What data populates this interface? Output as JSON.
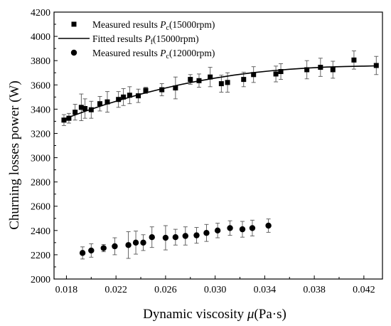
{
  "chart_data": {
    "type": "scatter",
    "title": "",
    "xlabel": "Dynamic viscosity μ(Pa·s)",
    "ylabel": "Churning losses power (W)",
    "xlim": [
      0.017,
      0.0435
    ],
    "ylim": [
      2000,
      4200
    ],
    "xticks": [
      0.018,
      0.022,
      0.026,
      0.03,
      0.034,
      0.038,
      0.042
    ],
    "xtick_labels": [
      "0.018",
      "0.022",
      "0.026",
      "0.030",
      "0.034",
      "0.038",
      "0.042"
    ],
    "yticks": [
      2000,
      2200,
      2400,
      2600,
      2800,
      3000,
      3200,
      3400,
      3600,
      3800,
      4000,
      4200
    ],
    "ytick_labels": [
      "2000",
      "2200",
      "2400",
      "2600",
      "2800",
      "3000",
      "3200",
      "3400",
      "3600",
      "3800",
      "4000",
      "4200"
    ],
    "grid": false,
    "legend_position": "top-left",
    "series": [
      {
        "name": "Measured results P_c(15000rpm)",
        "legend_main": "Measured results ",
        "legend_symbol": "P",
        "legend_sub": "c",
        "legend_tail": "(15000rpm)",
        "marker": "square",
        "color": "#000000",
        "x": [
          0.0178,
          0.0182,
          0.0187,
          0.0192,
          0.0195,
          0.02,
          0.0207,
          0.0213,
          0.0222,
          0.0226,
          0.0231,
          0.0238,
          0.0244,
          0.0257,
          0.0268,
          0.028,
          0.0287,
          0.0296,
          0.0305,
          0.031,
          0.0323,
          0.0331,
          0.0349,
          0.0353,
          0.0374,
          0.0385,
          0.0395,
          0.0412,
          0.043
        ],
        "y": [
          3310,
          3325,
          3375,
          3415,
          3405,
          3395,
          3445,
          3460,
          3480,
          3500,
          3515,
          3510,
          3555,
          3560,
          3575,
          3645,
          3635,
          3665,
          3610,
          3620,
          3645,
          3685,
          3690,
          3710,
          3725,
          3745,
          3725,
          3805,
          3760
        ],
        "err": [
          45,
          40,
          65,
          110,
          80,
          70,
          60,
          85,
          65,
          70,
          70,
          55,
          25,
          50,
          90,
          40,
          55,
          80,
          70,
          80,
          60,
          65,
          65,
          65,
          75,
          75,
          70,
          75,
          75
        ]
      },
      {
        "name": "Fitted results P_f(15000rpm)",
        "legend_main": "Fitted results ",
        "legend_symbol": "P",
        "legend_sub": "f",
        "legend_tail": "(15000rpm)",
        "marker": "line",
        "color": "#000000",
        "x": [
          0.0178,
          0.0195,
          0.021,
          0.0225,
          0.024,
          0.0255,
          0.027,
          0.0285,
          0.03,
          0.0315,
          0.033,
          0.0345,
          0.036,
          0.0375,
          0.039,
          0.0405,
          0.042,
          0.043
        ],
        "y": [
          3318,
          3382,
          3434,
          3481,
          3524,
          3563,
          3598,
          3629,
          3656,
          3680,
          3700,
          3716,
          3729,
          3739,
          3747,
          3752,
          3755,
          3757
        ]
      },
      {
        "name": "Measured results P_c(12000rpm)",
        "legend_main": "Measured results ",
        "legend_symbol": "P",
        "legend_sub": "c",
        "legend_tail": "(12000rpm)",
        "marker": "circle",
        "color": "#000000",
        "x": [
          0.0193,
          0.02,
          0.021,
          0.0219,
          0.023,
          0.0236,
          0.0242,
          0.0249,
          0.026,
          0.0268,
          0.0276,
          0.0285,
          0.0293,
          0.0302,
          0.0312,
          0.0322,
          0.033,
          0.0343
        ],
        "y": [
          2215,
          2235,
          2255,
          2270,
          2280,
          2300,
          2300,
          2345,
          2340,
          2345,
          2355,
          2360,
          2380,
          2400,
          2420,
          2410,
          2420,
          2440
        ],
        "err": [
          50,
          55,
          30,
          70,
          110,
          95,
          65,
          85,
          100,
          65,
          75,
          65,
          70,
          60,
          60,
          65,
          65,
          55
        ]
      }
    ]
  }
}
